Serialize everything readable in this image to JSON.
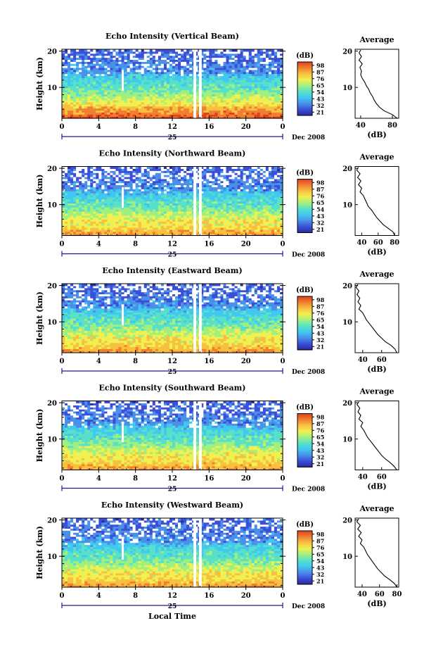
{
  "figure": {
    "date_label": "Dec 2008",
    "day_label": "25",
    "xlabel": "Local Time",
    "ylabel": "Height (km)",
    "colorbar_unit": "(dB)",
    "average_title": "Average",
    "average_xlabel": "(dB)"
  },
  "chart_data": [
    {
      "type": "heatmap",
      "title": "Echo Intensity (Vertical Beam)",
      "x_ticks": [
        "0",
        "4",
        "8",
        "12",
        "16",
        "20",
        "0"
      ],
      "xlim": [
        0,
        24
      ],
      "y_ticks": [
        "10",
        "20"
      ],
      "ylim": [
        1.5,
        20.5
      ],
      "colorbar_ticks": [
        "21",
        "32",
        "43",
        "54",
        "65",
        "76",
        "87",
        "98"
      ],
      "average_profile": {
        "type": "line",
        "x_ticks": [
          "40",
          "80"
        ],
        "xlim": [
          33,
          88
        ],
        "y_ticks": [
          "10",
          "20"
        ],
        "ylim": [
          1.5,
          20.5
        ],
        "points": [
          [
            86,
            1.5
          ],
          [
            80,
            2.5
          ],
          [
            70,
            3.5
          ],
          [
            64,
            4.5
          ],
          [
            60,
            5.5
          ],
          [
            57,
            6.5
          ],
          [
            55,
            7.5
          ],
          [
            52,
            8.5
          ],
          [
            50,
            9.5
          ],
          [
            47,
            10.5
          ],
          [
            45,
            11.5
          ],
          [
            42,
            12.5
          ],
          [
            40,
            13.5
          ],
          [
            41,
            14.5
          ],
          [
            39,
            15.5
          ],
          [
            42,
            16.5
          ],
          [
            38,
            17.5
          ],
          [
            41,
            18.5
          ],
          [
            38,
            19.5
          ],
          [
            40,
            20.3
          ]
        ]
      }
    },
    {
      "type": "heatmap",
      "title": "Echo Intensity (Northward Beam)",
      "x_ticks": [
        "0",
        "4",
        "8",
        "12",
        "16",
        "20",
        "0"
      ],
      "xlim": [
        0,
        24
      ],
      "y_ticks": [
        "10",
        "20"
      ],
      "ylim": [
        1.5,
        20.5
      ],
      "colorbar_ticks": [
        "21",
        "32",
        "43",
        "54",
        "65",
        "76",
        "87",
        "98"
      ],
      "average_profile": {
        "type": "line",
        "x_ticks": [
          "40",
          "60",
          "80"
        ],
        "xlim": [
          32,
          85
        ],
        "y_ticks": [
          "10",
          "20"
        ],
        "ylim": [
          1.5,
          20.5
        ],
        "points": [
          [
            80,
            1.5
          ],
          [
            78,
            2.5
          ],
          [
            72,
            3.5
          ],
          [
            66,
            4.5
          ],
          [
            62,
            5.5
          ],
          [
            58,
            6.5
          ],
          [
            55,
            7.5
          ],
          [
            52,
            8.5
          ],
          [
            48,
            9.5
          ],
          [
            46,
            10.5
          ],
          [
            44,
            11.5
          ],
          [
            42,
            12.5
          ],
          [
            38,
            13.5
          ],
          [
            40,
            14.5
          ],
          [
            36,
            15.5
          ],
          [
            39,
            16.5
          ],
          [
            35,
            17.5
          ],
          [
            38,
            18.5
          ],
          [
            34,
            19.5
          ],
          [
            36,
            20.3
          ]
        ]
      }
    },
    {
      "type": "heatmap",
      "title": "Echo Intensity (Eastward Beam)",
      "x_ticks": [
        "0",
        "4",
        "8",
        "12",
        "16",
        "20",
        "0"
      ],
      "xlim": [
        0,
        24
      ],
      "y_ticks": [
        "10",
        "20"
      ],
      "ylim": [
        1.5,
        20.5
      ],
      "colorbar_ticks": [
        "21",
        "32",
        "43",
        "54",
        "65",
        "76",
        "87",
        "98"
      ],
      "average_profile": {
        "type": "line",
        "x_ticks": [
          "40",
          "60"
        ],
        "xlim": [
          32,
          78
        ],
        "y_ticks": [
          "10",
          "20"
        ],
        "ylim": [
          1.5,
          20.5
        ],
        "points": [
          [
            76,
            1.5
          ],
          [
            74,
            2.5
          ],
          [
            70,
            3.5
          ],
          [
            64,
            4.5
          ],
          [
            60,
            5.5
          ],
          [
            56,
            6.5
          ],
          [
            53,
            7.5
          ],
          [
            50,
            8.5
          ],
          [
            47,
            9.5
          ],
          [
            44,
            10.5
          ],
          [
            42,
            11.5
          ],
          [
            40,
            12.5
          ],
          [
            36,
            13.5
          ],
          [
            38,
            14.5
          ],
          [
            35,
            15.5
          ],
          [
            37,
            16.5
          ],
          [
            34,
            17.5
          ],
          [
            36,
            18.5
          ],
          [
            33,
            19.5
          ],
          [
            35,
            20.3
          ]
        ]
      }
    },
    {
      "type": "heatmap",
      "title": "Echo Intensity (Southward Beam)",
      "x_ticks": [
        "0",
        "4",
        "8",
        "12",
        "16",
        "20",
        "0"
      ],
      "xlim": [
        0,
        24
      ],
      "y_ticks": [
        "10",
        "20"
      ],
      "ylim": [
        1.5,
        20.5
      ],
      "colorbar_ticks": [
        "21",
        "32",
        "43",
        "54",
        "65",
        "76",
        "87",
        "98"
      ],
      "average_profile": {
        "type": "line",
        "x_ticks": [
          "40",
          "60"
        ],
        "xlim": [
          32,
          78
        ],
        "y_ticks": [
          "10",
          "20"
        ],
        "ylim": [
          1.5,
          20.5
        ],
        "points": [
          [
            76,
            1.5
          ],
          [
            73,
            2.5
          ],
          [
            69,
            3.5
          ],
          [
            64,
            4.5
          ],
          [
            60,
            5.5
          ],
          [
            57,
            6.5
          ],
          [
            54,
            7.5
          ],
          [
            51,
            8.5
          ],
          [
            48,
            9.5
          ],
          [
            45,
            10.5
          ],
          [
            43,
            11.5
          ],
          [
            41,
            12.5
          ],
          [
            38,
            13.5
          ],
          [
            40,
            14.5
          ],
          [
            36,
            15.5
          ],
          [
            38,
            16.5
          ],
          [
            35,
            17.5
          ],
          [
            37,
            18.5
          ],
          [
            34,
            19.5
          ],
          [
            36,
            20.3
          ]
        ]
      }
    },
    {
      "type": "heatmap",
      "title": "Echo Intensity (Westward Beam)",
      "x_ticks": [
        "0",
        "4",
        "8",
        "12",
        "16",
        "20",
        "0"
      ],
      "xlim": [
        0,
        24
      ],
      "y_ticks": [
        "10",
        "20"
      ],
      "ylim": [
        1.5,
        20.5
      ],
      "colorbar_ticks": [
        "21",
        "32",
        "43",
        "54",
        "65",
        "76",
        "87",
        "98"
      ],
      "average_profile": {
        "type": "line",
        "x_ticks": [
          "40",
          "60",
          "80"
        ],
        "xlim": [
          32,
          82
        ],
        "y_ticks": [
          "10",
          "20"
        ],
        "ylim": [
          1.5,
          20.5
        ],
        "points": [
          [
            80,
            1.5
          ],
          [
            77,
            2.5
          ],
          [
            72,
            3.5
          ],
          [
            66,
            4.5
          ],
          [
            62,
            5.5
          ],
          [
            58,
            6.5
          ],
          [
            55,
            7.5
          ],
          [
            52,
            8.5
          ],
          [
            49,
            9.5
          ],
          [
            46,
            10.5
          ],
          [
            44,
            11.5
          ],
          [
            42,
            12.5
          ],
          [
            38,
            13.5
          ],
          [
            40,
            14.5
          ],
          [
            36,
            15.5
          ],
          [
            39,
            16.5
          ],
          [
            35,
            17.5
          ],
          [
            38,
            18.5
          ],
          [
            34,
            19.5
          ],
          [
            36,
            20.3
          ]
        ]
      }
    }
  ],
  "colors": {
    "colormap": [
      "#2a2a9e",
      "#3b4fd8",
      "#4a90e8",
      "#41c8f0",
      "#58e0c8",
      "#a0f080",
      "#f0f050",
      "#f8c040",
      "#f08030",
      "#e04020"
    ],
    "axis": "#000000",
    "data_gap": "#ffffff",
    "time_arrow": "#1a1a90"
  }
}
